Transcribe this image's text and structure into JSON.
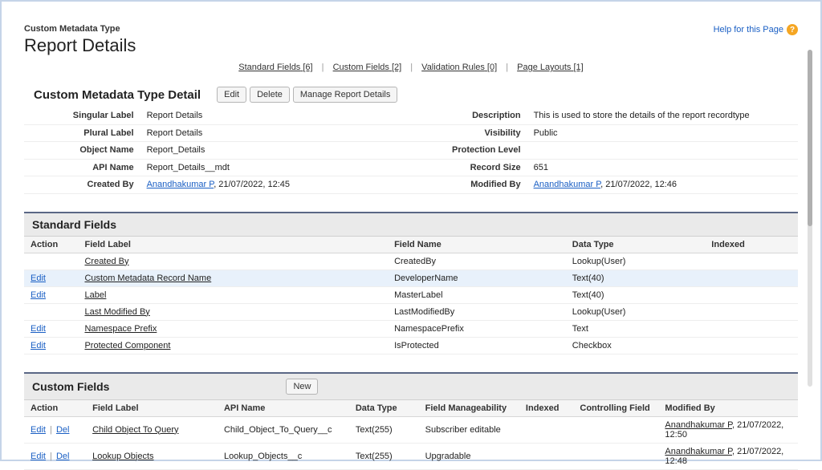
{
  "page": {
    "subtitle": "Custom Metadata Type",
    "title": "Report Details",
    "help_text": "Help for this Page"
  },
  "nav": {
    "standard_fields": {
      "label": "Standard Fields",
      "count": "[6]"
    },
    "custom_fields": {
      "label": "Custom Fields",
      "count": "[2]"
    },
    "validation_rules": {
      "label": "Validation Rules",
      "count": "[0]"
    },
    "page_layouts": {
      "label": "Page Layouts",
      "count": "[1]"
    }
  },
  "detail": {
    "section_title": "Custom Metadata Type Detail",
    "buttons": {
      "edit": "Edit",
      "delete": "Delete",
      "manage": "Manage Report Details"
    },
    "rows": [
      {
        "l1": "Singular Label",
        "v1": "Report Details",
        "l2": "Description",
        "v2": "This is used to store the details of the report recordtype"
      },
      {
        "l1": "Plural Label",
        "v1": "Report Details",
        "l2": "Visibility",
        "v2": "Public"
      },
      {
        "l1": "Object Name",
        "v1": "Report_Details",
        "l2": "Protection Level",
        "v2": ""
      },
      {
        "l1": "API Name",
        "v1": "Report_Details__mdt",
        "l2": "Record Size",
        "v2": "651"
      },
      {
        "l1": "Created By",
        "v1_link": "Anandhakumar P",
        "v1_suffix": ", 21/07/2022, 12:45",
        "l2": "Modified By",
        "v2_link": "Anandhakumar P",
        "v2_suffix": ", 21/07/2022, 12:46"
      }
    ]
  },
  "standard_fields": {
    "title": "Standard Fields",
    "headers": {
      "action": "Action",
      "label": "Field Label",
      "name": "Field Name",
      "type": "Data Type",
      "indexed": "Indexed"
    },
    "rows": [
      {
        "action": "",
        "label": "Created By",
        "name": "CreatedBy",
        "type": "Lookup(User)",
        "indexed": "",
        "hl": false
      },
      {
        "action": "Edit",
        "label": "Custom Metadata Record Name",
        "name": "DeveloperName",
        "type": "Text(40)",
        "indexed": "",
        "hl": true
      },
      {
        "action": "Edit",
        "label": "Label",
        "name": "MasterLabel",
        "type": "Text(40)",
        "indexed": "",
        "hl": false
      },
      {
        "action": "",
        "label": "Last Modified By",
        "name": "LastModifiedBy",
        "type": "Lookup(User)",
        "indexed": "",
        "hl": false
      },
      {
        "action": "Edit",
        "label": "Namespace Prefix",
        "name": "NamespacePrefix",
        "type": "Text",
        "indexed": "",
        "hl": false
      },
      {
        "action": "Edit",
        "label": "Protected Component",
        "name": "IsProtected",
        "type": "Checkbox",
        "indexed": "",
        "hl": false
      }
    ]
  },
  "custom_fields": {
    "title": "Custom Fields",
    "new_button": "New",
    "headers": {
      "action": "Action",
      "label": "Field Label",
      "api": "API Name",
      "type": "Data Type",
      "manage": "Field Manageability",
      "indexed": "Indexed",
      "controlling": "Controlling Field",
      "modified": "Modified By"
    },
    "rows": [
      {
        "edit": "Edit",
        "del": "Del",
        "label": "Child Object To Query",
        "api": "Child_Object_To_Query__c",
        "type": "Text(255)",
        "manage": "Subscriber editable",
        "indexed": "",
        "controlling": "",
        "mod_link": "Anandhakumar P",
        "mod_suffix": ", 21/07/2022, 12:50"
      },
      {
        "edit": "Edit",
        "del": "Del",
        "label": "Lookup Objects",
        "api": "Lookup_Objects__c",
        "type": "Text(255)",
        "manage": "Upgradable",
        "indexed": "",
        "controlling": "",
        "mod_link": "Anandhakumar P",
        "mod_suffix": ", 21/07/2022, 12:48"
      }
    ]
  }
}
